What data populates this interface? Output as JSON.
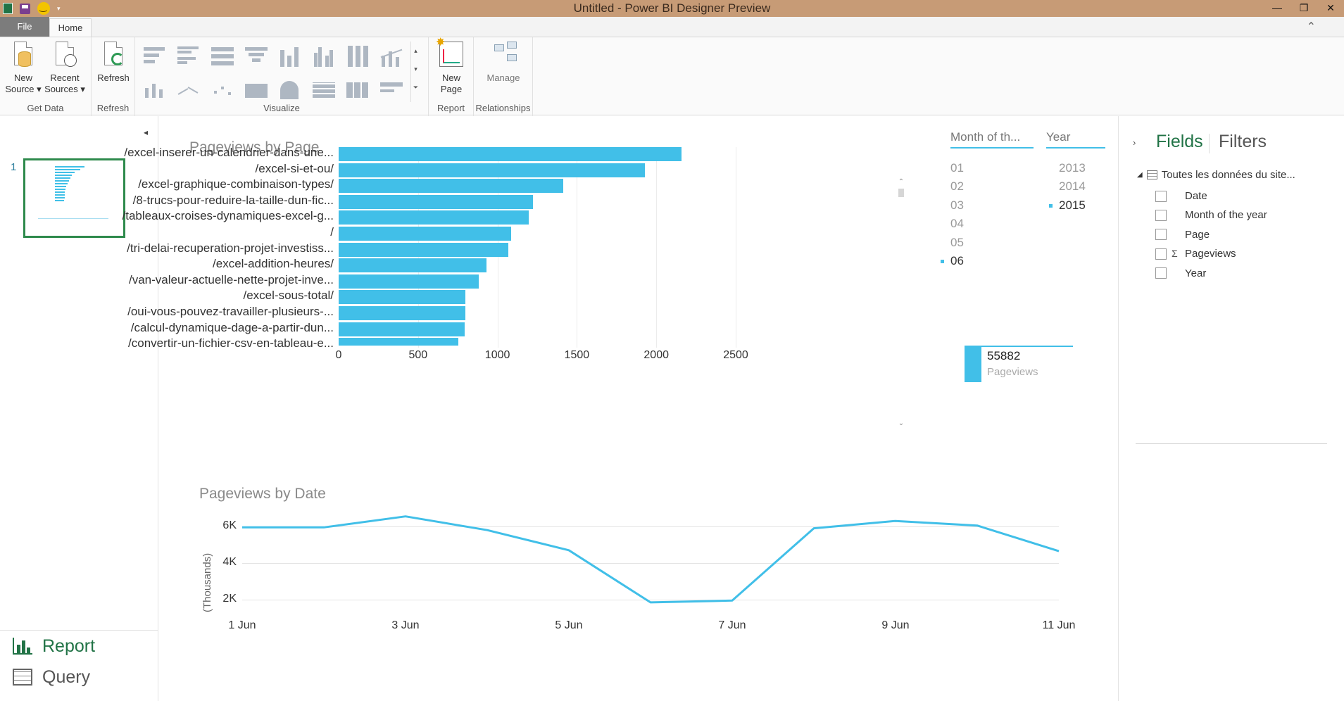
{
  "window": {
    "title": "Untitled - Power BI Designer Preview"
  },
  "ribbon": {
    "tabs": [
      "File",
      "Home"
    ],
    "groups": {
      "get_data": {
        "label": "Get Data",
        "new_source": "New Source ▾",
        "new_source_l1": "New",
        "new_source_l2": "Source ▾",
        "recent_l1": "Recent",
        "recent_l2": "Sources ▾"
      },
      "refresh": {
        "label": "Refresh",
        "button": "Refresh"
      },
      "visualize": {
        "label": "Visualize"
      },
      "report": {
        "label": "Report",
        "new_l1": "New",
        "new_l2": "Page"
      },
      "relationships": {
        "label": "Relationships",
        "button": "Manage"
      }
    }
  },
  "pages": {
    "current": "1"
  },
  "views": {
    "report": "Report",
    "query": "Query"
  },
  "bar_chart": {
    "title": "Pageviews by Page",
    "x_ticks": [
      "0",
      "500",
      "1000",
      "1500",
      "2000",
      "2500"
    ],
    "chart_data": {
      "type": "bar",
      "title": "Pageviews by Page",
      "categories": [
        "/excel-inserer-un-calendrier-dans-une...",
        "/excel-si-et-ou/",
        "/excel-graphique-combinaison-types/",
        "/8-trucs-pour-reduire-la-taille-dun-fic...",
        "/tableaux-croises-dynamiques-excel-g...",
        "/",
        "/tri-delai-recuperation-projet-investiss...",
        "/excel-addition-heures/",
        "/van-valeur-actuelle-nette-projet-inve...",
        "/excel-sous-total/",
        "/oui-vous-pouvez-travailler-plusieurs-...",
        "/calcul-dynamique-dage-a-partir-dun...",
        "/convertir-un-fichier-csv-en-tableau-e..."
      ],
      "values": [
        2160,
        1930,
        1415,
        1225,
        1195,
        1085,
        1070,
        930,
        880,
        800,
        800,
        795,
        755
      ],
      "xlim": [
        0,
        2500
      ]
    }
  },
  "slicers": {
    "month": {
      "header": "Month of th...",
      "items": [
        "01",
        "02",
        "03",
        "04",
        "05",
        "06"
      ],
      "selected": "06"
    },
    "year": {
      "header": "Year",
      "items": [
        "2013",
        "2014",
        "2015"
      ],
      "selected": "2015"
    }
  },
  "card": {
    "value": "55882",
    "label": "Pageviews"
  },
  "line_chart": {
    "title": "Pageviews by Date",
    "y_title": "(Thousands)",
    "y_ticks": [
      "6K",
      "4K",
      "2K"
    ],
    "x_ticks": [
      "1 Jun",
      "3 Jun",
      "5 Jun",
      "7 Jun",
      "9 Jun",
      "11 Jun"
    ],
    "chart_data": {
      "type": "line",
      "x": [
        "1 Jun",
        "2 Jun",
        "3 Jun",
        "4 Jun",
        "5 Jun",
        "6 Jun",
        "7 Jun",
        "8 Jun",
        "9 Jun",
        "10 Jun",
        "11 Jun"
      ],
      "series": [
        {
          "values": [
            5950,
            5950,
            6550,
            5800,
            4700,
            1850,
            1950,
            5900,
            6300,
            6050,
            4650
          ]
        }
      ],
      "ylabel": "(Thousands)",
      "ylim": [
        1500,
        7000
      ]
    }
  },
  "fields_pane": {
    "fields_tab": "Fields",
    "filters_tab": "Filters",
    "table_name": "Toutes les données du site...",
    "fields": [
      "Date",
      "Month of the year",
      "Page",
      "Pageviews",
      "Year"
    ]
  },
  "colors": {
    "accent": "#41bfe8",
    "brand": "#217346",
    "titlebar": "#c79b76"
  }
}
